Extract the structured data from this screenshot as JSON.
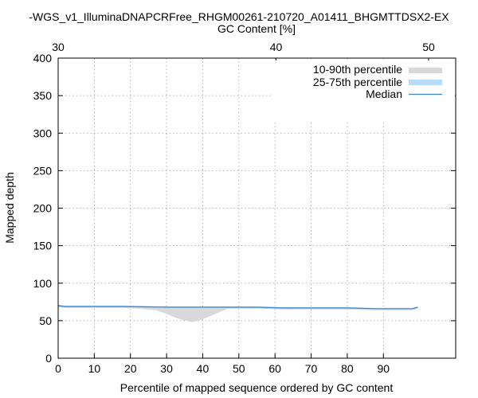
{
  "chart_data": {
    "type": "area",
    "title": "-WGS_v1_IlluminaDNAPCRFree_RHGM00261-210720_A01411_BHGMTTDSX2-EX",
    "xlabel": "Percentile of mapped sequence ordered by GC content",
    "ylabel": "Mapped depth",
    "x2label": "GC Content [%]",
    "xlim": [
      0,
      110
    ],
    "ylim": [
      0,
      400
    ],
    "x_ticks": [
      "0",
      "10",
      "20",
      "30",
      "40",
      "50",
      "60",
      "70",
      "80",
      "90"
    ],
    "y_ticks": [
      "0",
      "50",
      "100",
      "150",
      "200",
      "250",
      "300",
      "350",
      "400"
    ],
    "x2_ticks": [
      {
        "label": "30",
        "percentile": 0
      },
      {
        "label": "40",
        "percentile": 60.3
      },
      {
        "label": "50",
        "percentile": 102.5
      }
    ],
    "grid": true,
    "legend": "top-right",
    "series": [
      {
        "name": "10-90th percentile",
        "color": "#d9d9d9",
        "x": [
          0,
          2,
          10,
          18,
          22,
          27,
          30,
          33,
          36,
          37,
          39,
          42,
          45,
          47,
          55,
          62,
          70,
          80,
          88,
          95,
          98,
          99.5
        ],
        "low": [
          68,
          67,
          67,
          67,
          66,
          64,
          59,
          53,
          49,
          48,
          50,
          56,
          62,
          66,
          66,
          65,
          65,
          65,
          64,
          64,
          64,
          66
        ],
        "high": [
          71,
          70,
          70,
          70,
          69,
          68,
          68,
          68,
          68,
          68,
          68,
          68,
          68,
          68,
          68,
          67,
          67,
          67,
          66,
          66,
          66,
          68
        ]
      },
      {
        "name": "25-75th percentile",
        "color": "#b8dcf7",
        "x": [
          0,
          2,
          10,
          18,
          30,
          40,
          55,
          62,
          70,
          80,
          88,
          95,
          98,
          99.5
        ],
        "low": [
          69,
          68,
          68,
          68,
          67,
          67,
          67,
          66,
          66,
          66,
          65,
          65,
          65,
          67
        ],
        "high": [
          71,
          70,
          70,
          70,
          69,
          69,
          69,
          68,
          68,
          68,
          67,
          67,
          67,
          69
        ]
      },
      {
        "name": "Median",
        "color": "#3a82d0",
        "x": [
          0,
          2,
          10,
          18,
          30,
          40,
          55,
          62,
          70,
          80,
          88,
          95,
          98,
          99.5
        ],
        "values": [
          70,
          69,
          69,
          69,
          68,
          68,
          68,
          67,
          67,
          67,
          66,
          66,
          66,
          68
        ]
      }
    ]
  }
}
